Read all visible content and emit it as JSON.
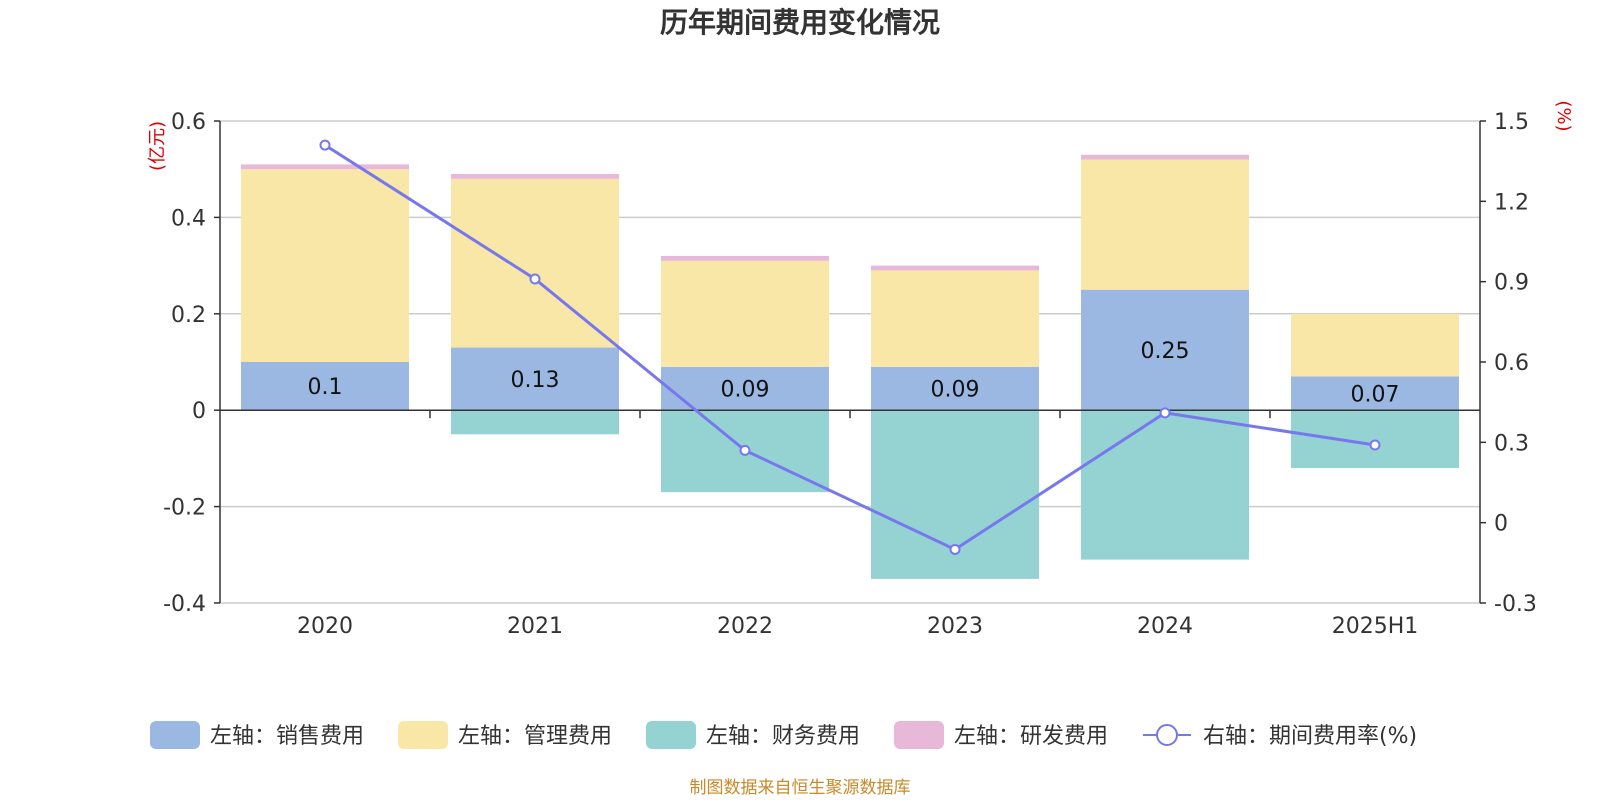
{
  "colors": {
    "sales": "#9bb8e2",
    "admin": "#f8e7a6",
    "finance": "#95d3d3",
    "rnd": "#e8b8d8",
    "line": "#7777ee",
    "grid": "#cccccc",
    "axis": "#333333",
    "unit_text": "#e00000",
    "source_text": "#c98a2a"
  },
  "chart_data": {
    "type": "bar",
    "stacked": true,
    "title": "历年期间费用变化情况",
    "categories": [
      "2020",
      "2021",
      "2022",
      "2023",
      "2024",
      "2025H1"
    ],
    "left_axis": {
      "unit": "(亿元)",
      "range": [
        -0.4,
        0.6
      ],
      "ticks": [
        "-0.4",
        "-0.2",
        "0",
        "0.2",
        "0.4",
        "0.6"
      ],
      "tick_values": [
        -0.4,
        -0.2,
        0,
        0.2,
        0.4,
        0.6
      ]
    },
    "right_axis": {
      "unit": "(%)",
      "range": [
        -0.3,
        1.5
      ],
      "ticks": [
        "-0.3",
        "0",
        "0.3",
        "0.6",
        "0.9",
        "1.2",
        "1.5"
      ],
      "tick_values": [
        -0.3,
        0,
        0.3,
        0.6,
        0.9,
        1.2,
        1.5
      ]
    },
    "series": [
      {
        "name": "左轴：销售费用",
        "key": "sales",
        "axis": "left",
        "values": [
          0.1,
          0.13,
          0.09,
          0.09,
          0.25,
          0.07
        ],
        "labels": [
          "0.1",
          "0.13",
          "0.09",
          "0.09",
          "0.25",
          "0.07"
        ]
      },
      {
        "name": "左轴：管理费用",
        "key": "admin",
        "axis": "left",
        "values": [
          0.4,
          0.35,
          0.22,
          0.2,
          0.27,
          0.13
        ]
      },
      {
        "name": "左轴：财务费用",
        "key": "finance",
        "axis": "left",
        "values": [
          0,
          -0.05,
          -0.17,
          -0.35,
          -0.31,
          -0.12
        ]
      },
      {
        "name": "左轴：研发费用",
        "key": "rnd",
        "axis": "left",
        "values": [
          0.01,
          0.01,
          0.01,
          0.01,
          0.01,
          0
        ]
      },
      {
        "name": "右轴：期间费用率(%)",
        "key": "line",
        "axis": "right",
        "type": "line",
        "values": [
          1.41,
          0.91,
          0.27,
          -0.1,
          0.41,
          0.29
        ]
      }
    ],
    "grid": true,
    "legend_position": "bottom"
  },
  "source_note": "制图数据来自恒生聚源数据库"
}
